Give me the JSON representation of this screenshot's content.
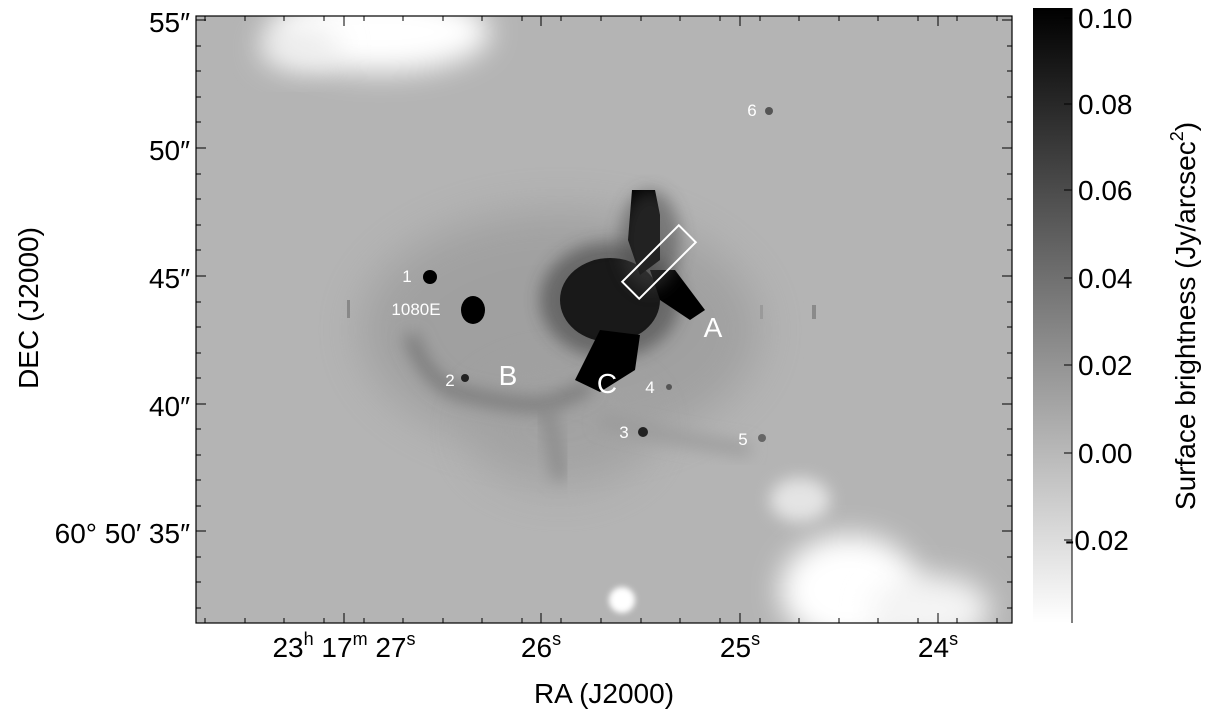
{
  "figure": {
    "x_axis_label": "RA (J2000)",
    "y_axis_label": "DEC (J2000)",
    "x_ticks": [
      {
        "hour": "23",
        "h_unit": "h",
        "minute": "17",
        "m_unit": "m",
        "second": "27",
        "s_unit": "s"
      },
      {
        "second": "26",
        "s_unit": "s"
      },
      {
        "second": "25",
        "s_unit": "s"
      },
      {
        "second": "24",
        "s_unit": "s"
      }
    ],
    "y_ticks": [
      "55″",
      "50″",
      "45″",
      "40″",
      "60° 50′ 35″"
    ],
    "colorbar": {
      "label_prefix": "Surface brightness (Jy/arcsec",
      "label_exp": "2",
      "label_suffix": ")",
      "ticks": [
        "0.10",
        "0.08",
        "0.06",
        "0.04",
        "0.02",
        "0.00",
        "-0.02"
      ],
      "colormap": "grayscale",
      "color_high": "#000000",
      "color_low": "#ffffff"
    },
    "annotations": {
      "src1": "1",
      "src1080E": "1080E",
      "src2": "2",
      "src3": "3",
      "src4": "4",
      "src5": "5",
      "src6": "6",
      "regionA": "A",
      "regionB": "B",
      "regionC": "C"
    },
    "image_colors": {
      "background": "#b4b4b4",
      "annotation_text": "#ffffff",
      "slit_box": "#ffffff"
    }
  }
}
